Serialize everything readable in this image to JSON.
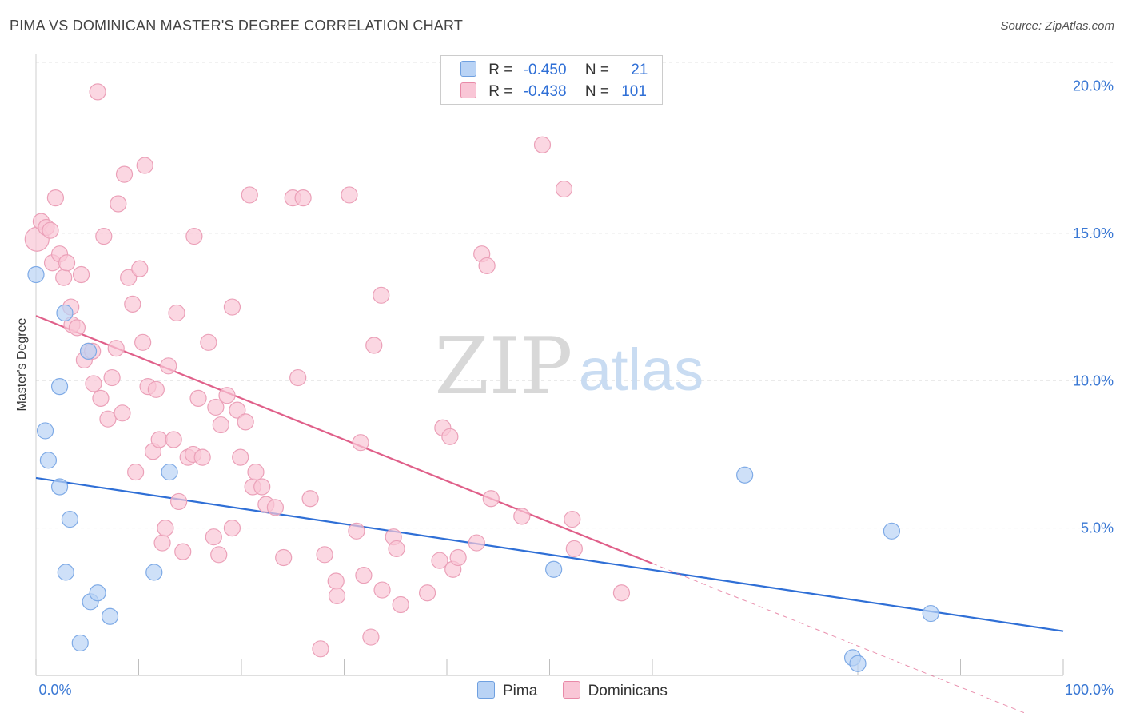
{
  "header": {
    "title": "PIMA VS DOMINICAN MASTER'S DEGREE CORRELATION CHART",
    "source": "Source: ZipAtlas.com"
  },
  "watermark": {
    "zip": "ZIP",
    "atlas": "atlas"
  },
  "legend": {
    "rows": [
      {
        "r_label": "R =",
        "r_value": "-0.450",
        "n_label": "N =",
        "n_value": "21",
        "color": "#b9d3f5",
        "border": "#6fa0e0"
      },
      {
        "r_label": "R =",
        "r_value": "-0.438",
        "n_label": "N =",
        "n_value": "101",
        "color": "#f9c6d6",
        "border": "#e88aa8"
      }
    ]
  },
  "bottom_legend": {
    "items": [
      "Pima",
      "Dominicans"
    ]
  },
  "colors": {
    "pima_fill": "#b9d3f5",
    "pima_stroke": "#7eaae6",
    "pima_line": "#2f6fd6",
    "dom_fill": "#f9c6d6",
    "dom_stroke": "#eba0b8",
    "dom_line": "#e0608a",
    "tick_label": "#3a78d4",
    "grid": "#e3e3e3"
  },
  "chart_data": {
    "type": "scatter",
    "title": "PIMA VS DOMINICAN MASTER'S DEGREE CORRELATION CHART",
    "xlabel": "",
    "ylabel": "Master's Degree",
    "xlim": [
      0,
      100
    ],
    "ylim": [
      0,
      20.8
    ],
    "x_tick_labels": [
      "0.0%",
      "100.0%"
    ],
    "y_ticks": [
      5,
      10,
      15,
      20
    ],
    "y_tick_labels": [
      "5.0%",
      "10.0%",
      "15.0%",
      "20.0%"
    ],
    "grid": "horizontal dashed",
    "legend_position": "top-center",
    "series": [
      {
        "name": "Pima",
        "R": -0.45,
        "N": 21,
        "points": [
          [
            0.0,
            13.6
          ],
          [
            0.9,
            8.3
          ],
          [
            1.2,
            7.3
          ],
          [
            2.3,
            9.8
          ],
          [
            2.3,
            6.4
          ],
          [
            2.8,
            12.3
          ],
          [
            3.3,
            5.3
          ],
          [
            2.9,
            3.5
          ],
          [
            4.3,
            1.1
          ],
          [
            5.3,
            2.5
          ],
          [
            6.0,
            2.8
          ],
          [
            7.2,
            2.0
          ],
          [
            5.1,
            11.0
          ],
          [
            11.5,
            3.5
          ],
          [
            13.0,
            6.9
          ],
          [
            50.4,
            3.6
          ],
          [
            69.0,
            6.8
          ],
          [
            79.5,
            0.6
          ],
          [
            80.0,
            0.4
          ],
          [
            83.3,
            4.9
          ],
          [
            87.1,
            2.1
          ]
        ],
        "trend": {
          "x": [
            0,
            100
          ],
          "y": [
            6.7,
            1.5
          ]
        }
      },
      {
        "name": "Dominicans",
        "R": -0.438,
        "N": 101,
        "points": [
          [
            0.1,
            14.8
          ],
          [
            0.5,
            15.4
          ],
          [
            1.0,
            15.2
          ],
          [
            1.4,
            15.1
          ],
          [
            1.6,
            14.0
          ],
          [
            1.9,
            16.2
          ],
          [
            2.3,
            14.3
          ],
          [
            2.7,
            13.5
          ],
          [
            3.0,
            14.0
          ],
          [
            3.4,
            12.5
          ],
          [
            3.5,
            11.9
          ],
          [
            4.0,
            11.8
          ],
          [
            4.4,
            13.6
          ],
          [
            4.7,
            10.7
          ],
          [
            5.1,
            11.0
          ],
          [
            5.5,
            11.0
          ],
          [
            5.6,
            9.9
          ],
          [
            6.3,
            9.4
          ],
          [
            6.6,
            14.9
          ],
          [
            7.0,
            8.7
          ],
          [
            7.4,
            10.1
          ],
          [
            7.8,
            11.1
          ],
          [
            8.0,
            16.0
          ],
          [
            8.4,
            8.9
          ],
          [
            8.6,
            17.0
          ],
          [
            9.0,
            13.5
          ],
          [
            9.4,
            12.6
          ],
          [
            9.7,
            6.9
          ],
          [
            10.1,
            13.8
          ],
          [
            10.4,
            11.3
          ],
          [
            10.6,
            17.3
          ],
          [
            10.9,
            9.8
          ],
          [
            11.4,
            7.6
          ],
          [
            11.7,
            9.7
          ],
          [
            12.0,
            8.0
          ],
          [
            12.3,
            4.5
          ],
          [
            12.6,
            5.0
          ],
          [
            12.9,
            10.5
          ],
          [
            13.4,
            8.0
          ],
          [
            13.7,
            12.3
          ],
          [
            13.9,
            5.9
          ],
          [
            14.3,
            4.2
          ],
          [
            14.8,
            7.4
          ],
          [
            15.3,
            7.5
          ],
          [
            15.4,
            14.9
          ],
          [
            15.8,
            9.4
          ],
          [
            16.2,
            7.4
          ],
          [
            16.8,
            11.3
          ],
          [
            17.3,
            4.7
          ],
          [
            17.5,
            9.1
          ],
          [
            17.8,
            4.1
          ],
          [
            18.0,
            8.5
          ],
          [
            18.6,
            9.5
          ],
          [
            19.1,
            12.5
          ],
          [
            19.1,
            5.0
          ],
          [
            19.6,
            9.0
          ],
          [
            19.9,
            7.4
          ],
          [
            20.4,
            8.6
          ],
          [
            20.8,
            16.3
          ],
          [
            21.1,
            6.4
          ],
          [
            21.4,
            6.9
          ],
          [
            22.0,
            6.4
          ],
          [
            22.4,
            5.8
          ],
          [
            23.3,
            5.7
          ],
          [
            24.1,
            4.0
          ],
          [
            25.0,
            16.2
          ],
          [
            25.5,
            10.1
          ],
          [
            26.0,
            16.2
          ],
          [
            26.7,
            6.0
          ],
          [
            27.7,
            0.9
          ],
          [
            28.1,
            4.1
          ],
          [
            29.2,
            3.2
          ],
          [
            29.3,
            2.7
          ],
          [
            30.5,
            16.3
          ],
          [
            31.2,
            4.9
          ],
          [
            31.6,
            7.9
          ],
          [
            31.9,
            3.4
          ],
          [
            32.6,
            1.3
          ],
          [
            32.9,
            11.2
          ],
          [
            33.6,
            12.9
          ],
          [
            33.7,
            2.9
          ],
          [
            34.8,
            4.7
          ],
          [
            35.1,
            4.3
          ],
          [
            35.5,
            2.4
          ],
          [
            38.1,
            2.8
          ],
          [
            39.3,
            3.9
          ],
          [
            39.6,
            8.4
          ],
          [
            40.3,
            8.1
          ],
          [
            40.6,
            3.6
          ],
          [
            41.1,
            4.0
          ],
          [
            42.9,
            4.5
          ],
          [
            43.4,
            14.3
          ],
          [
            43.9,
            13.9
          ],
          [
            44.3,
            6.0
          ],
          [
            47.3,
            5.4
          ],
          [
            49.3,
            18.0
          ],
          [
            51.4,
            16.5
          ],
          [
            52.2,
            5.3
          ],
          [
            52.4,
            4.3
          ],
          [
            57.0,
            2.8
          ],
          [
            6.0,
            19.8
          ]
        ],
        "trend": {
          "x": [
            0,
            60
          ],
          "y": [
            12.2,
            3.8
          ]
        },
        "trend_extension": {
          "x": [
            60,
            100
          ],
          "y": [
            3.8,
            -1.8
          ]
        }
      }
    ]
  }
}
